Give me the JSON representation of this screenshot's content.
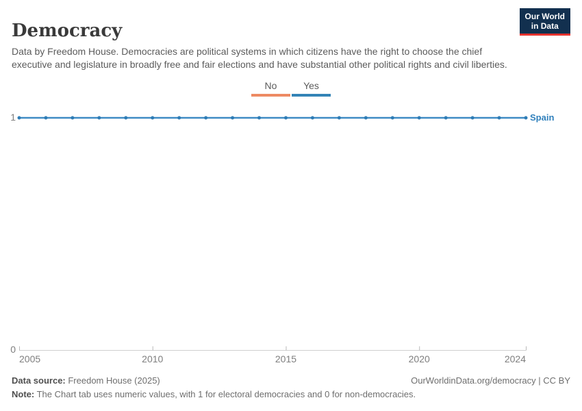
{
  "header": {
    "title": "Democracy",
    "subtitle": "Data by Freedom House. Democracies are political systems in which citizens have the right to choose the chief executive and legislature in broadly free and fair elections and have substantial other political rights and civil liberties.",
    "logo": {
      "line1": "Our World",
      "line2": "in Data",
      "bg_color": "#12304F",
      "accent_color": "#E5322E"
    }
  },
  "legend": {
    "items": [
      {
        "label": "No",
        "color": "#ED8A63"
      },
      {
        "label": "Yes",
        "color": "#3383B6"
      }
    ]
  },
  "chart_data": {
    "type": "line",
    "title": "Democracy",
    "entity_label": "Spain",
    "entity_label_color": "#3080BC",
    "xlim": [
      2005,
      2024
    ],
    "ylim": [
      0,
      1
    ],
    "x_ticks": [
      2005,
      2010,
      2015,
      2020,
      2024
    ],
    "y_ticks": [
      1,
      0
    ],
    "axis_color": "#cfcfcf",
    "tick_color": "#b9b9b9",
    "grid": false,
    "legend_position": "top-center",
    "series": [
      {
        "name": "Spain",
        "color": "#3F8BC4",
        "dot_color": "#2E7CB5",
        "years": [
          2005,
          2006,
          2007,
          2008,
          2009,
          2010,
          2011,
          2012,
          2013,
          2014,
          2015,
          2016,
          2017,
          2018,
          2019,
          2020,
          2021,
          2022,
          2023,
          2024
        ],
        "values": [
          1,
          1,
          1,
          1,
          1,
          1,
          1,
          1,
          1,
          1,
          1,
          1,
          1,
          1,
          1,
          1,
          1,
          1,
          1,
          1
        ]
      }
    ]
  },
  "footer": {
    "source_label": "Data source:",
    "source_value": " Freedom House (2025)",
    "note_label": "Note:",
    "note_value": " The Chart tab uses numeric values, with 1 for electoral democracies and 0 for non-democracies.",
    "attribution": "OurWorldinData.org/democracy | CC BY"
  }
}
